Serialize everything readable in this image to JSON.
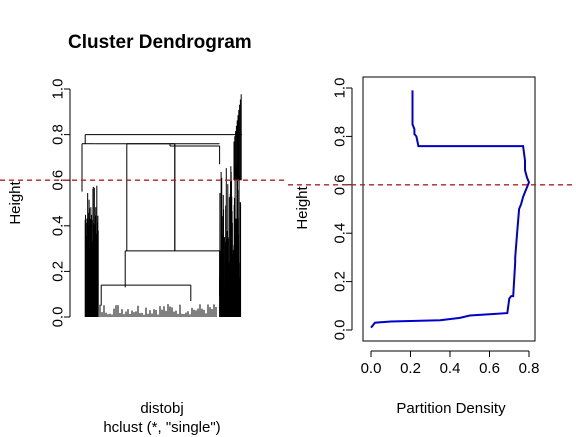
{
  "colors": {
    "tree": "#000000",
    "density_line": "#0000cc",
    "cut_line": "#b22222",
    "axis": "#000000"
  },
  "chart_data": [
    {
      "type": "dendrogram",
      "title": "Cluster Dendrogram",
      "ylabel": "Height",
      "xlabel": "distobj",
      "sub": "hclust (*, \"single\")",
      "ylim": [
        0,
        1
      ],
      "yticks": [
        "0.0",
        "0.2",
        "0.4",
        "0.6",
        "0.8",
        "1.0"
      ],
      "ytick_values": [
        0,
        0.2,
        0.4,
        0.6,
        0.8,
        1.0
      ],
      "cut_height": 0.6,
      "merges": [
        {
          "left": 0.0,
          "right": 0.08,
          "height": 0.76,
          "child_left": 0.55,
          "child_right": 0.76
        },
        {
          "left": 0.08,
          "right": 0.86,
          "height": 0.76,
          "child_left": 0.76,
          "child_right": 0.76
        },
        {
          "left": 0.28,
          "right": 0.58,
          "height": 0.76,
          "child_left": 0.29,
          "child_right": 0.29
        },
        {
          "left": 0.55,
          "right": 0.86,
          "height": 0.75,
          "child_left": 0.76,
          "child_right": 0.67
        },
        {
          "left": 0.27,
          "right": 0.86,
          "height": 0.29,
          "child_left": 0.13,
          "child_right": 0.09
        },
        {
          "left": 0.12,
          "right": 0.68,
          "height": 0.14,
          "child_left": 0.05,
          "child_right": 0.07
        },
        {
          "left": 0.02,
          "right": 1.0,
          "height": 0.8,
          "child_left": 0.76,
          "child_right": 0.8
        }
      ]
    },
    {
      "type": "line",
      "xlabel": "Partition Density",
      "ylabel": "Height",
      "xlim": [
        0,
        0.8
      ],
      "ylim": [
        0,
        1
      ],
      "xticks": [
        "0.0",
        "0.2",
        "0.4",
        "0.6",
        "0.8"
      ],
      "xtick_values": [
        0,
        0.2,
        0.4,
        0.6,
        0.8
      ],
      "yticks": [
        "0.0",
        "0.2",
        "0.4",
        "0.6",
        "0.8",
        "1.0"
      ],
      "ytick_values": [
        0,
        0.2,
        0.4,
        0.6,
        0.8,
        1.0
      ],
      "cut_height": 0.6,
      "series": [
        {
          "x": [
            0.0,
            0.01,
            0.02,
            0.1,
            0.2,
            0.35,
            0.45,
            0.5,
            0.6,
            0.69,
            0.7,
            0.71,
            0.72,
            0.73,
            0.73,
            0.74,
            0.75,
            0.76,
            0.77,
            0.78,
            0.79,
            0.8,
            0.79,
            0.78,
            0.78,
            0.77,
            0.6,
            0.4,
            0.24,
            0.23,
            0.22,
            0.22,
            0.21,
            0.21
          ],
          "y": [
            0.01,
            0.02,
            0.03,
            0.035,
            0.037,
            0.04,
            0.05,
            0.06,
            0.065,
            0.07,
            0.13,
            0.14,
            0.14,
            0.28,
            0.3,
            0.4,
            0.5,
            0.52,
            0.55,
            0.57,
            0.59,
            0.61,
            0.63,
            0.66,
            0.7,
            0.76,
            0.76,
            0.76,
            0.76,
            0.8,
            0.81,
            0.83,
            0.85,
            0.99
          ]
        }
      ]
    }
  ]
}
